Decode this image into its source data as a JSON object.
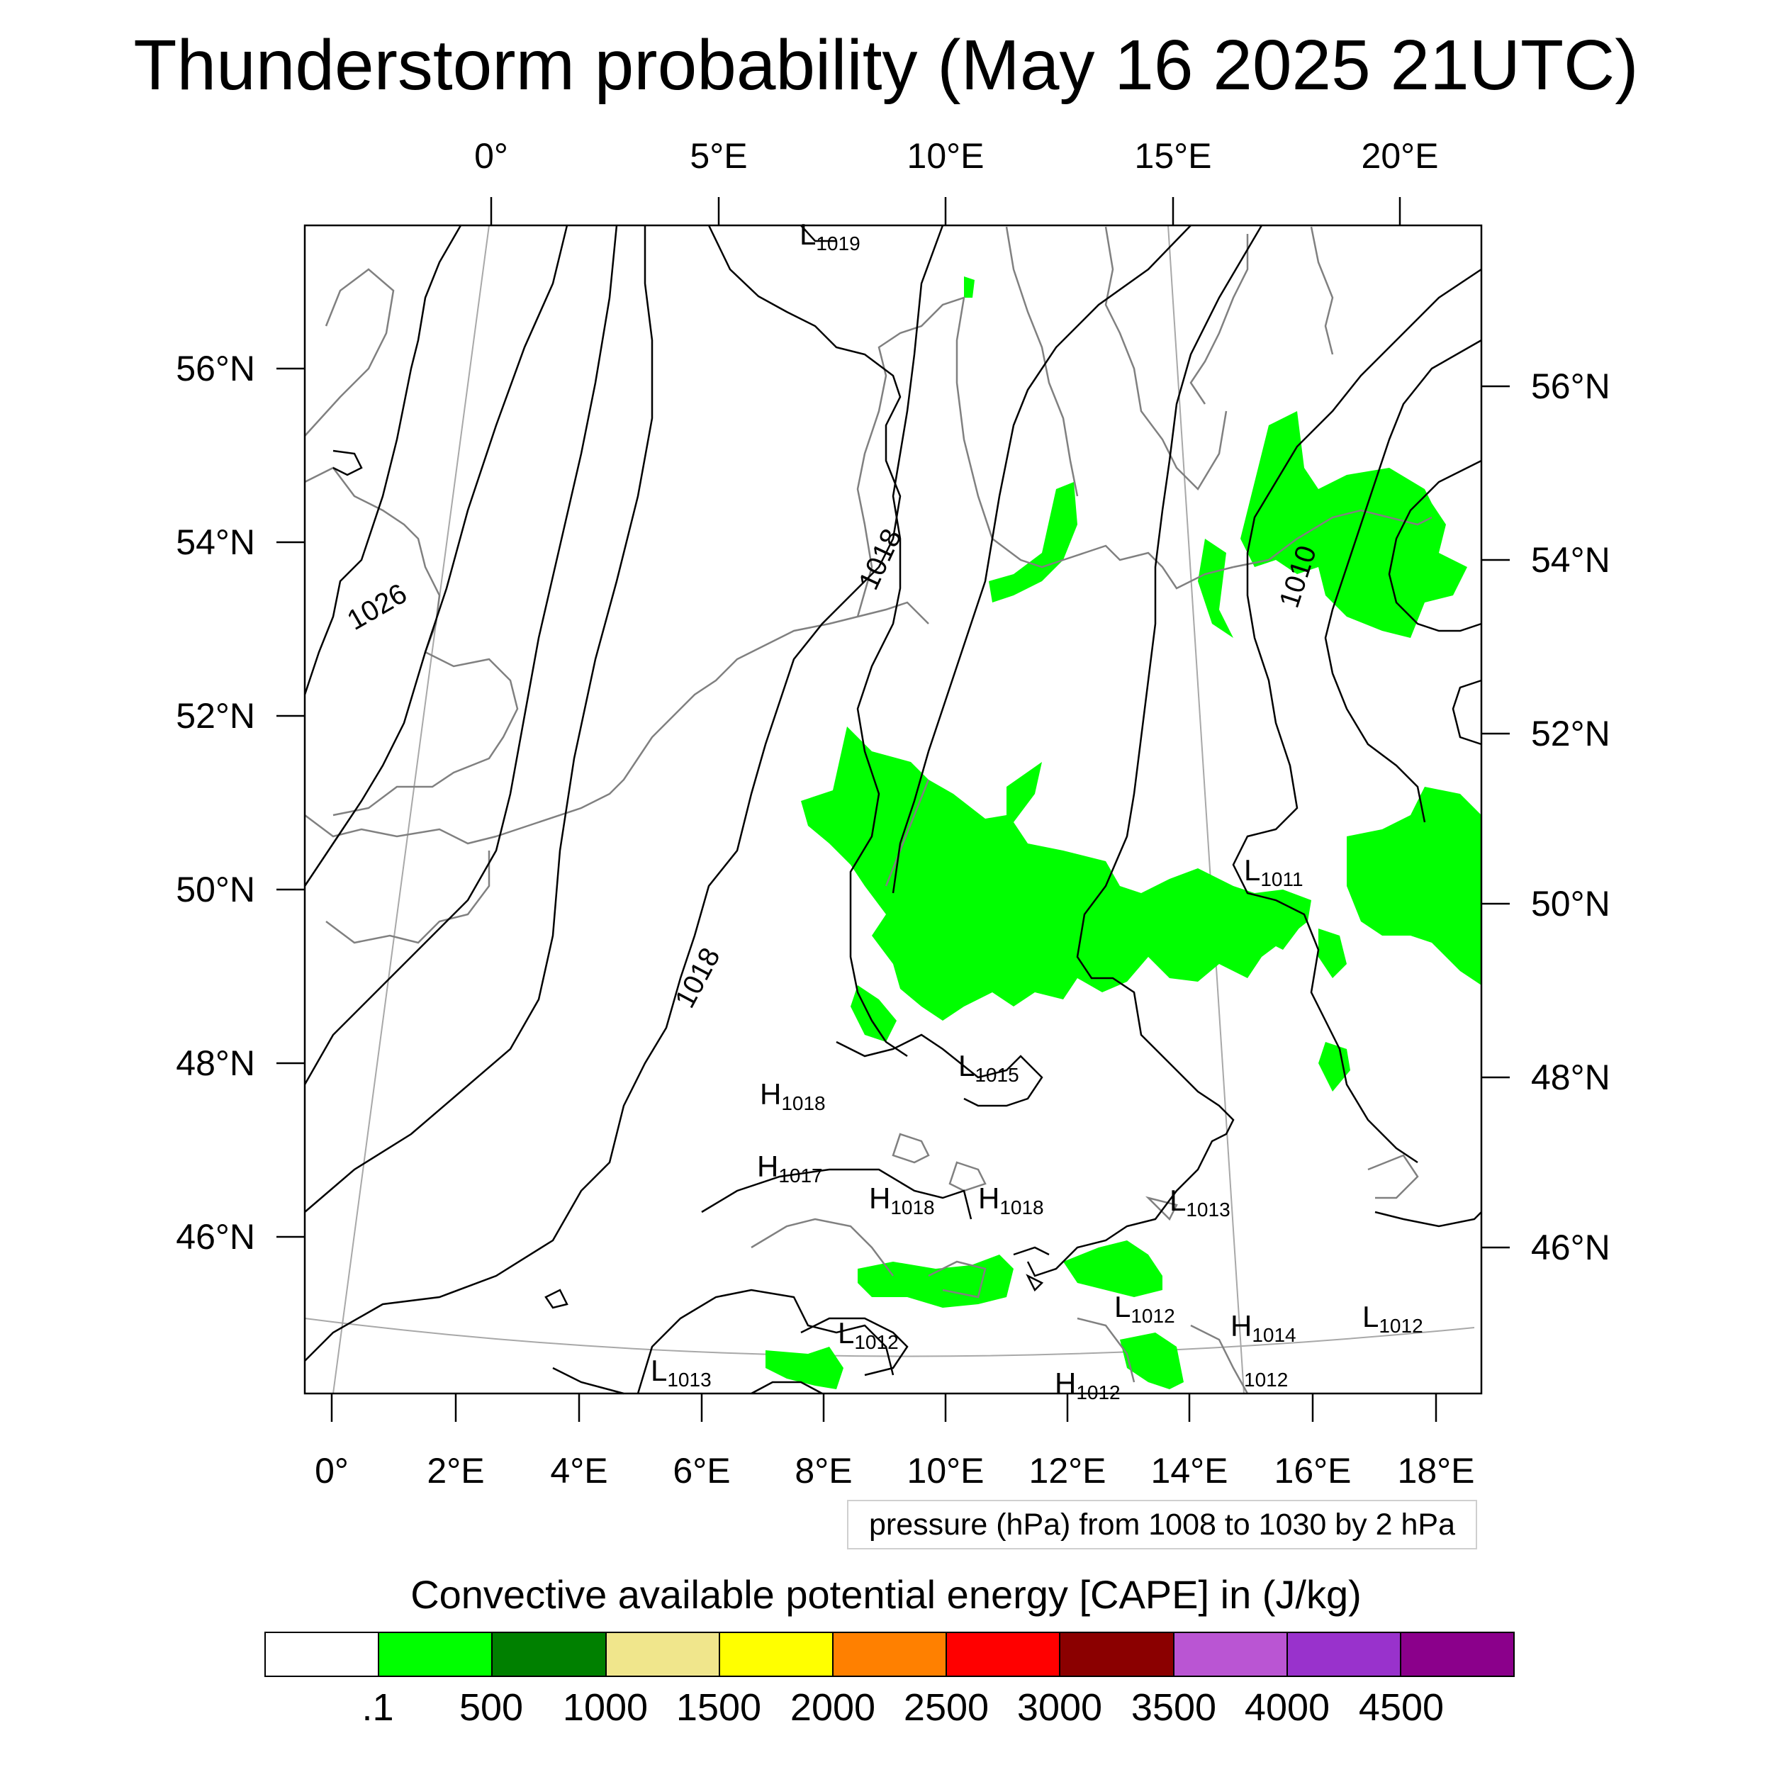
{
  "title": "Thunderstorm probability (May 16 2025 21UTC)",
  "axes": {
    "top_lon": [
      "0°",
      "5°E",
      "10°E",
      "15°E",
      "20°E"
    ],
    "bottom_lon": [
      "0°",
      "2°E",
      "4°E",
      "6°E",
      "8°E",
      "10°E",
      "12°E",
      "14°E",
      "16°E",
      "18°E"
    ],
    "left_lat": [
      "56°N",
      "54°N",
      "52°N",
      "50°N",
      "48°N",
      "46°N"
    ],
    "right_lat": [
      "56°N",
      "54°N",
      "52°N",
      "50°N",
      "48°N",
      "46°N"
    ]
  },
  "isobar_labels": [
    "1026",
    "1018",
    "1018",
    "1010"
  ],
  "pressure_centers": [
    {
      "type": "L",
      "value": "1019"
    },
    {
      "type": "L",
      "value": "1015"
    },
    {
      "type": "H",
      "value": "1018"
    },
    {
      "type": "H",
      "value": "1017"
    },
    {
      "type": "H",
      "value": "1018"
    },
    {
      "type": "H",
      "value": "1018"
    },
    {
      "type": "L",
      "value": "1013"
    },
    {
      "type": "L",
      "value": "1011"
    },
    {
      "type": "L",
      "value": "1012"
    },
    {
      "type": "L",
      "value": "1012"
    },
    {
      "type": "H",
      "value": "1014"
    },
    {
      "type": "L",
      "value": "1012"
    },
    {
      "type": "L",
      "value": "1013"
    },
    {
      "type": "H",
      "value": "1012"
    },
    {
      "type": "",
      "value": "1012"
    }
  ],
  "contour_info": "pressure (hPa) from 1008 to 1030 by 2 hPa",
  "legend": {
    "title": "Convective available potential energy [CAPE] in (J/kg)",
    "colors": [
      "#ffffff",
      "#00ff00",
      "#008000",
      "#f0e68c",
      "#ffff00",
      "#ff8000",
      "#ff0000",
      "#8b0000",
      "#ba55d3",
      "#9932cc",
      "#8b008b"
    ],
    "labels": [
      ".1",
      "500",
      "1000",
      "1500",
      "2000",
      "2500",
      "3000",
      "3500",
      "4000",
      "4500"
    ]
  },
  "colors": {
    "coast": "#808080",
    "isobar": "#000000",
    "cape_low": "#00ff00",
    "grid": "#a8a8a8"
  }
}
